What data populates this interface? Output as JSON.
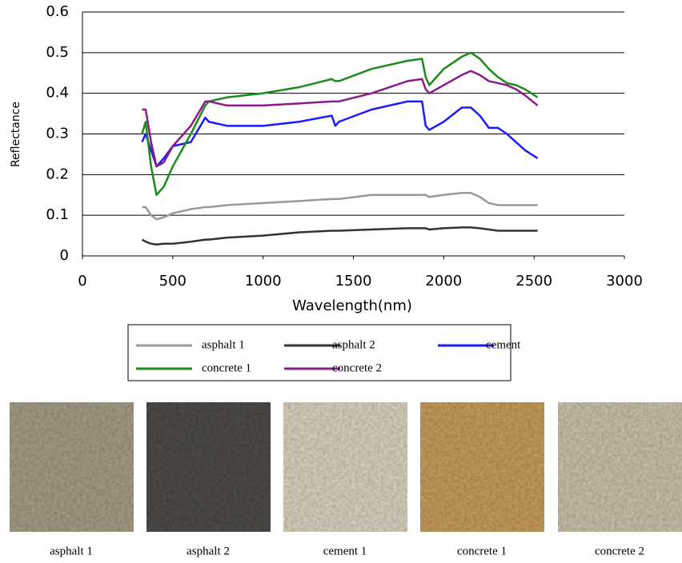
{
  "chart_data": {
    "type": "line",
    "xlabel": "Wavelength(nm)",
    "ylabel": "Reflectance",
    "x": [
      330,
      350,
      380,
      410,
      450,
      500,
      600,
      680,
      700,
      800,
      1000,
      1200,
      1380,
      1400,
      1420,
      1600,
      1800,
      1880,
      1900,
      1920,
      2000,
      2100,
      2150,
      2200,
      2250,
      2300,
      2350,
      2400,
      2450,
      2520
    ],
    "series": [
      {
        "name": "asphalt 1",
        "color": "#999999",
        "values": [
          0.12,
          0.12,
          0.1,
          0.09,
          0.095,
          0.105,
          0.115,
          0.12,
          0.12,
          0.125,
          0.13,
          0.135,
          0.14,
          0.14,
          0.14,
          0.15,
          0.15,
          0.15,
          0.15,
          0.145,
          0.15,
          0.155,
          0.155,
          0.145,
          0.13,
          0.125,
          0.125,
          0.125,
          0.125,
          0.125
        ]
      },
      {
        "name": "asphalt 2",
        "color": "#333333",
        "values": [
          0.04,
          0.035,
          0.03,
          0.028,
          0.03,
          0.03,
          0.035,
          0.04,
          0.04,
          0.045,
          0.05,
          0.058,
          0.062,
          0.062,
          0.062,
          0.065,
          0.068,
          0.068,
          0.068,
          0.065,
          0.068,
          0.07,
          0.07,
          0.068,
          0.065,
          0.062,
          0.062,
          0.062,
          0.062,
          0.062
        ]
      },
      {
        "name": "cement",
        "color": "#1a1aff",
        "values": [
          0.28,
          0.3,
          0.26,
          0.22,
          0.24,
          0.27,
          0.28,
          0.34,
          0.33,
          0.32,
          0.32,
          0.33,
          0.345,
          0.32,
          0.33,
          0.36,
          0.38,
          0.38,
          0.32,
          0.31,
          0.33,
          0.365,
          0.365,
          0.345,
          0.315,
          0.315,
          0.3,
          0.28,
          0.26,
          0.24
        ]
      },
      {
        "name": "concrete 1",
        "color": "#1a8c1a",
        "values": [
          0.3,
          0.33,
          0.22,
          0.15,
          0.17,
          0.22,
          0.3,
          0.37,
          0.38,
          0.39,
          0.4,
          0.415,
          0.435,
          0.43,
          0.43,
          0.46,
          0.48,
          0.485,
          0.44,
          0.42,
          0.46,
          0.49,
          0.5,
          0.485,
          0.46,
          0.44,
          0.425,
          0.42,
          0.41,
          0.39
        ]
      },
      {
        "name": "concrete 2",
        "color": "#8b1a8b",
        "values": [
          0.36,
          0.36,
          0.28,
          0.22,
          0.23,
          0.27,
          0.32,
          0.38,
          0.38,
          0.37,
          0.37,
          0.375,
          0.38,
          0.38,
          0.38,
          0.4,
          0.43,
          0.435,
          0.41,
          0.4,
          0.42,
          0.445,
          0.455,
          0.445,
          0.43,
          0.425,
          0.42,
          0.41,
          0.395,
          0.37
        ]
      }
    ],
    "xlim": [
      0,
      3000
    ],
    "xticks": [
      0,
      500,
      1000,
      1500,
      2000,
      2500,
      3000
    ],
    "ylim": [
      0,
      0.6
    ],
    "yticks": [
      0,
      0.1,
      0.2,
      0.3,
      0.4,
      0.5,
      0.6
    ],
    "grid": true
  },
  "samples": [
    "asphalt 1",
    "asphalt 2",
    "cement 1",
    "concrete 1",
    "concrete 2"
  ]
}
